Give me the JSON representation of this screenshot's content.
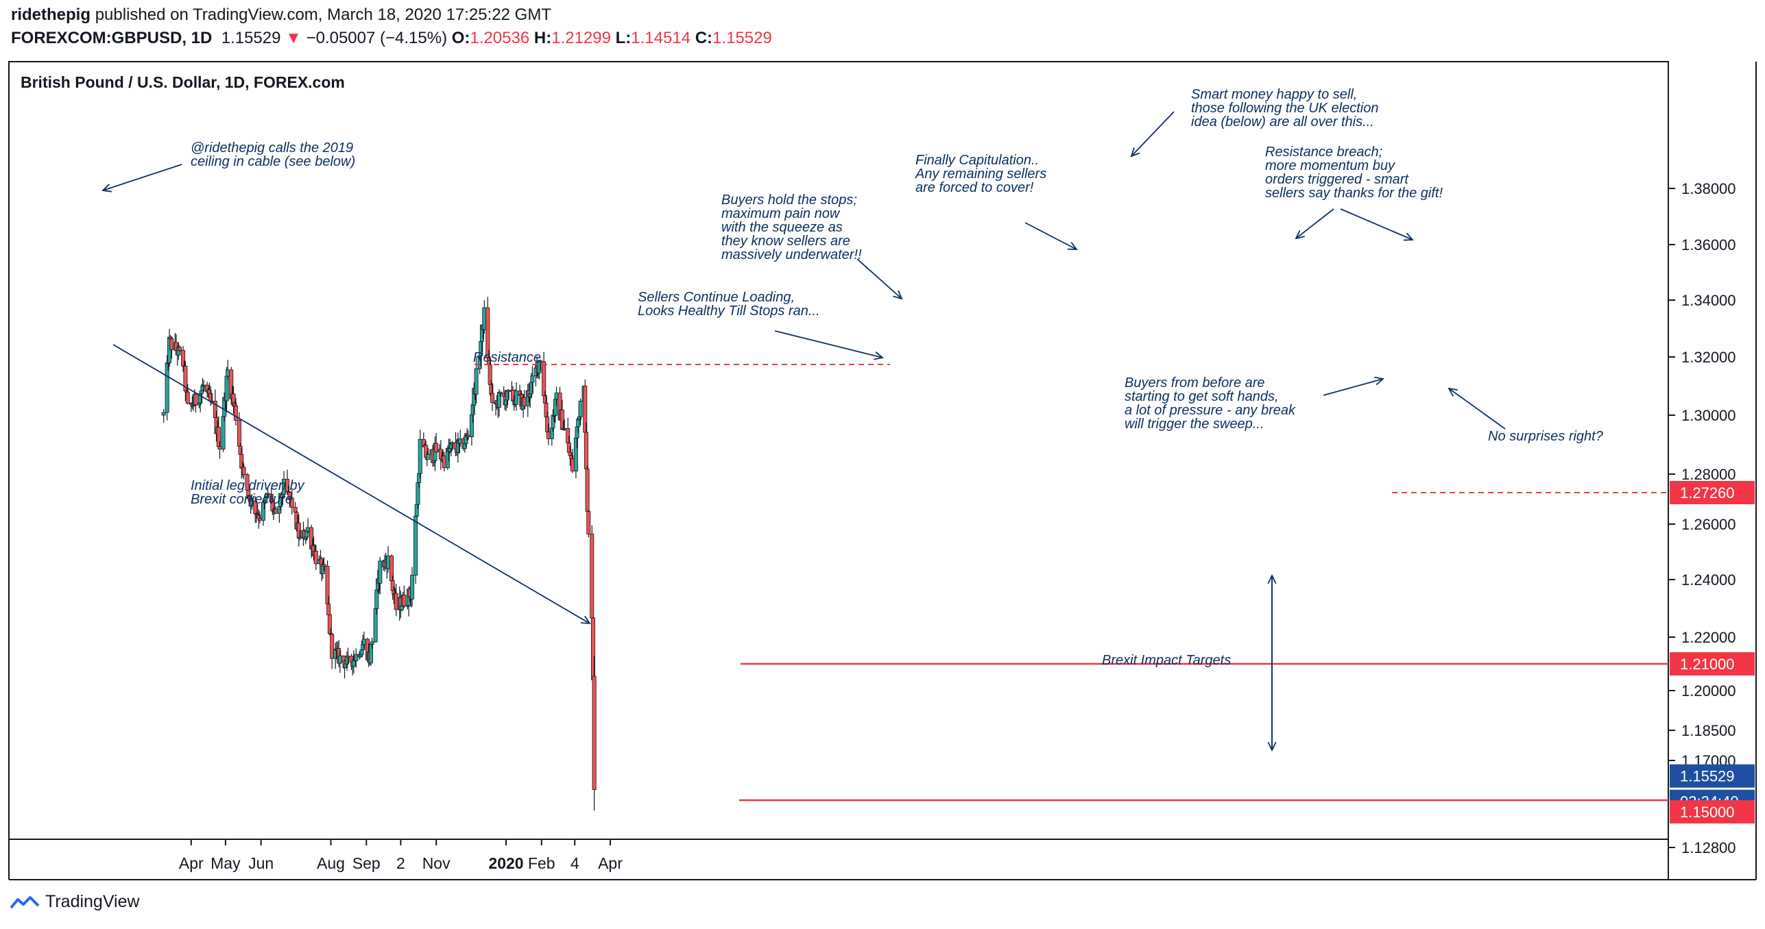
{
  "header": {
    "author": "ridethepig",
    "published_text": "published on TradingView.com, March 18, 2020 17:25:22 GMT",
    "symbol": "FOREXCOM:GBPUSD, 1D",
    "last": "1.15529",
    "change_arrow": "▼",
    "change": "−0.05007 (−4.15%)",
    "o_label": "O:",
    "o_value": "1.20536",
    "h_label": "H:",
    "h_value": "1.21299",
    "l_label": "L:",
    "l_value": "1.14514",
    "c_label": "C:",
    "c_value": "1.15529"
  },
  "footer": {
    "brand": "TradingView",
    "logo_icon": "tradingview-logo-icon"
  },
  "colors": {
    "up_candle": "#26a69a",
    "down_candle": "#ef5350",
    "candle_stroke": "#131722",
    "level_line": "#f23645",
    "annotation": "#0c3060",
    "last_price_tag": "#1e4fa0"
  },
  "chart_data": {
    "type": "candlestick",
    "title": "British Pound / U.S. Dollar, 1D, FOREX.com",
    "ylim": [
      1.123,
      1.388
    ],
    "y_ticks": [
      "1.38000",
      "1.36000",
      "1.34000",
      "1.32000",
      "1.30000",
      "1.28000",
      "1.26000",
      "1.24000",
      "1.22000",
      "1.20000",
      "1.18500",
      "1.17000",
      "1.12800"
    ],
    "x_ticks": [
      "Apr",
      "May",
      "Jun",
      "Aug",
      "Sep",
      "2",
      "Nov",
      "2020",
      "Feb",
      "4",
      "Apr"
    ],
    "price_labels": {
      "resistance": "1.27260",
      "support_1": "1.21000",
      "last": "1.15529",
      "countdown": "03:34:40",
      "support_2": "1.15000"
    },
    "levels": [
      {
        "value": 1.2726,
        "style": "dashed",
        "label": "Resistance"
      },
      {
        "value": 1.21,
        "style": "solid"
      },
      {
        "value": 1.15,
        "style": "solid"
      }
    ],
    "path": [
      [
        "2019-03-08",
        1.3
      ],
      [
        "2019-03-13",
        1.325
      ],
      [
        "2019-03-20",
        1.322
      ],
      [
        "2019-03-25",
        1.318
      ],
      [
        "2019-03-29",
        1.302
      ],
      [
        "2019-04-05",
        1.305
      ],
      [
        "2019-04-12",
        1.31
      ],
      [
        "2019-04-19",
        1.303
      ],
      [
        "2019-04-26",
        1.29
      ],
      [
        "2019-05-03",
        1.315
      ],
      [
        "2019-05-10",
        1.3
      ],
      [
        "2019-05-17",
        1.278
      ],
      [
        "2019-05-24",
        1.268
      ],
      [
        "2019-05-31",
        1.263
      ],
      [
        "2019-06-07",
        1.272
      ],
      [
        "2019-06-14",
        1.262
      ],
      [
        "2019-06-21",
        1.275
      ],
      [
        "2019-06-28",
        1.268
      ],
      [
        "2019-07-05",
        1.254
      ],
      [
        "2019-07-12",
        1.258
      ],
      [
        "2019-07-19",
        1.248
      ],
      [
        "2019-07-26",
        1.242
      ],
      [
        "2019-08-02",
        1.215
      ],
      [
        "2019-08-09",
        1.212
      ],
      [
        "2019-08-16",
        1.21
      ],
      [
        "2019-08-23",
        1.213
      ],
      [
        "2019-08-30",
        1.218
      ],
      [
        "2019-09-04",
        1.212
      ],
      [
        "2019-09-13",
        1.245
      ],
      [
        "2019-09-20",
        1.247
      ],
      [
        "2019-09-27",
        1.23
      ],
      [
        "2019-10-04",
        1.233
      ],
      [
        "2019-10-10",
        1.235
      ],
      [
        "2019-10-14",
        1.262
      ],
      [
        "2019-10-18",
        1.29
      ],
      [
        "2019-10-25",
        1.285
      ],
      [
        "2019-11-01",
        1.288
      ],
      [
        "2019-11-08",
        1.285
      ],
      [
        "2019-11-15",
        1.289
      ],
      [
        "2019-11-22",
        1.289
      ],
      [
        "2019-11-29",
        1.293
      ],
      [
        "2019-12-06",
        1.313
      ],
      [
        "2019-12-13",
        1.335
      ],
      [
        "2019-12-20",
        1.302
      ],
      [
        "2019-12-27",
        1.306
      ],
      [
        "2020-01-03",
        1.306
      ],
      [
        "2020-01-10",
        1.306
      ],
      [
        "2020-01-17",
        1.304
      ],
      [
        "2020-01-24",
        1.311
      ],
      [
        "2020-01-31",
        1.32
      ],
      [
        "2020-02-07",
        1.292
      ],
      [
        "2020-02-14",
        1.305
      ],
      [
        "2020-02-21",
        1.295
      ],
      [
        "2020-02-28",
        1.282
      ],
      [
        "2020-03-06",
        1.305
      ],
      [
        "2020-03-09",
        1.313
      ],
      [
        "2020-03-12",
        1.264
      ],
      [
        "2020-03-13",
        1.255
      ],
      [
        "2020-03-16",
        1.229
      ],
      [
        "2020-03-17",
        1.2054
      ],
      [
        "2020-03-18",
        1.1553
      ]
    ],
    "annotations": [
      "@ridethepig calls the 2019\nceiling in cable (see below)",
      "Initial leg driven by\nBrexit conjecture",
      "Sellers Continue Loading,\nLooks Healthy Till Stops ran...",
      "Buyers hold the stops;\nmaximum pain now\nwith the squeeze as\nthey know sellers are\nmassively underwater!!",
      "Finally Capitulation..\nAny remaining sellers\nare forced to cover!",
      "Smart money happy to sell,\nthose following the UK election\nidea (below) are all over this...",
      "Resistance breach;\nmore momentum buy\norders triggered - smart\nsellers say thanks for the gift!",
      "Buyers from before are\nstarting to get soft hands,\na lot of pressure - any break\nwill trigger the sweep...",
      "No surprises right?",
      "Brexit Impact Targets"
    ]
  }
}
